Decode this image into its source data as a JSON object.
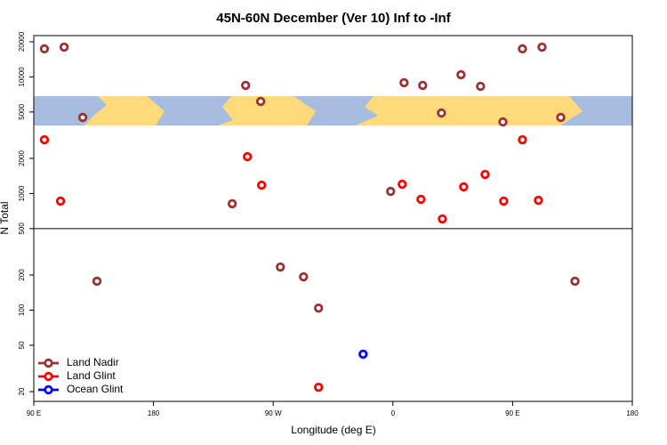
{
  "chart_data": {
    "type": "scatter",
    "title": "45N-60N December (Ver 10)   Inf to -Inf",
    "xlabel": "Longitude (deg E)",
    "ylabel": "N Total",
    "xlim": [
      90,
      540
    ],
    "ylim": [
      16.5,
      22600
    ],
    "yscale": "log",
    "xticks": [
      {
        "value": 90,
        "label": "90 E"
      },
      180,
      {
        "value": 270,
        "label": "90 W"
      },
      {
        "value": 360,
        "label": "0"
      },
      {
        "value": 450,
        "label": "90 E"
      },
      {
        "value": 540,
        "label": "180"
      }
    ],
    "yticks": [
      20,
      50,
      100,
      200,
      500,
      1000,
      2000,
      5000,
      10000,
      20000
    ],
    "hline": 500,
    "legend": "bottom-left",
    "series": [
      {
        "name": "Land Nadir",
        "color": "#993333",
        "x": [
          98,
          112.8,
          126.8,
          137.5,
          239.2,
          249.3,
          260.6,
          275.4,
          292.8,
          304.1,
          358.3,
          368.4,
          382.4,
          396.5,
          411.2,
          425.9,
          442.7,
          457.4,
          472.1,
          486.2,
          496.9
        ],
        "values": [
          17400,
          18000,
          4490,
          177,
          817,
          8460,
          6160,
          234,
          193,
          104,
          1042,
          8920,
          8460,
          4900,
          10440,
          8300,
          4110,
          17400,
          18000,
          4490,
          177
        ]
      },
      {
        "name": "Land Glint",
        "color": "#ff0000",
        "x": [
          98,
          110.1,
          250.6,
          261.3,
          304.1,
          367,
          381.1,
          397.2,
          413.2,
          429.3,
          443.3,
          457.4,
          469.4
        ],
        "values": [
          2890,
          861,
          2070,
          1180,
          21.8,
          1200,
          891,
          605,
          1140,
          1456,
          861,
          2890,
          874
        ]
      },
      {
        "name": "Ocean Glint",
        "color": "#0000ff",
        "x": [
          337.6
        ],
        "values": [
          41.9
        ]
      }
    ]
  }
}
